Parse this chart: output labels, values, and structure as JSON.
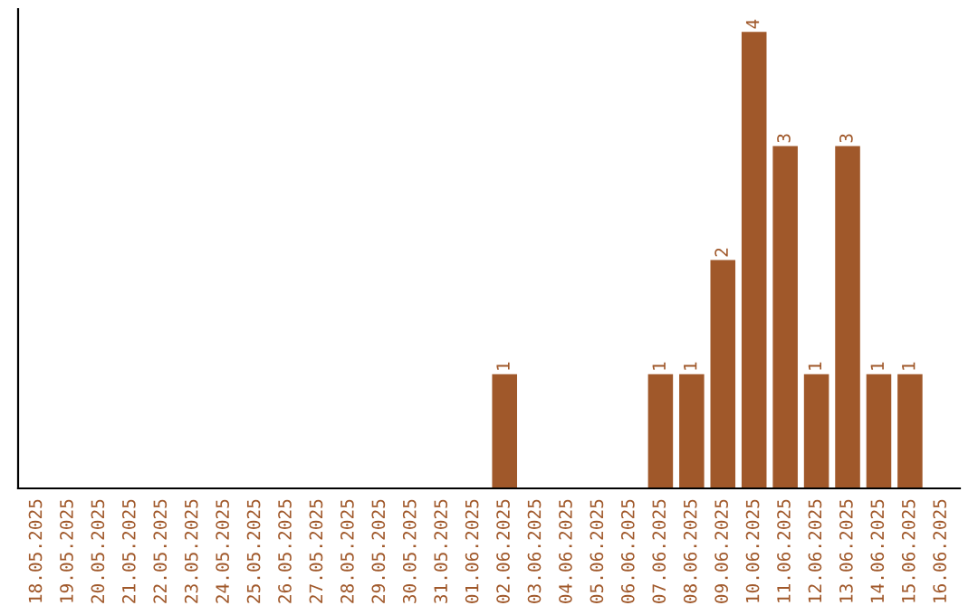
{
  "chart_data": {
    "type": "bar",
    "categories": [
      "18.05.2025",
      "19.05.2025",
      "20.05.2025",
      "21.05.2025",
      "22.05.2025",
      "23.05.2025",
      "24.05.2025",
      "25.05.2025",
      "26.05.2025",
      "27.05.2025",
      "28.05.2025",
      "29.05.2025",
      "30.05.2025",
      "31.05.2025",
      "01.06.2025",
      "02.06.2025",
      "03.06.2025",
      "04.06.2025",
      "05.06.2025",
      "06.06.2025",
      "07.06.2025",
      "08.06.2025",
      "09.06.2025",
      "10.06.2025",
      "11.06.2025",
      "12.06.2025",
      "13.06.2025",
      "14.06.2025",
      "15.06.2025",
      "16.06.2025"
    ],
    "series": [
      {
        "color": "#a0582a",
        "values": [
          null,
          null,
          null,
          null,
          null,
          null,
          null,
          null,
          null,
          null,
          null,
          null,
          null,
          null,
          null,
          1,
          null,
          null,
          null,
          null,
          1,
          1,
          2,
          4,
          3,
          1,
          3,
          1,
          1,
          null
        ]
      }
    ],
    "data_labels": true,
    "grid": false,
    "legend": false
  }
}
